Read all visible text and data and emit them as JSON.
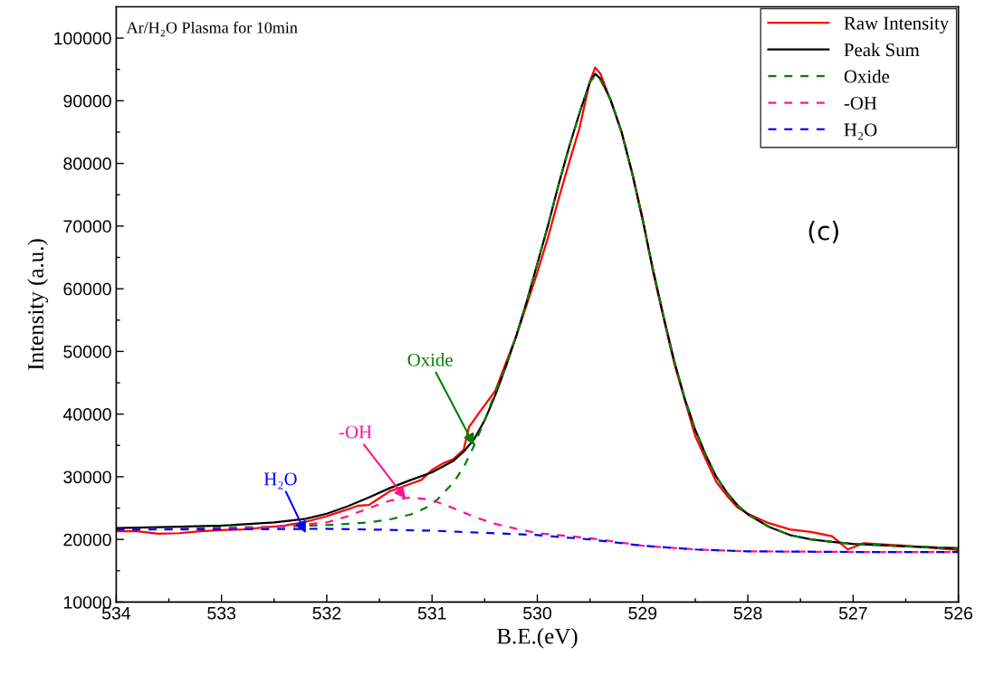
{
  "chart_data": {
    "type": "line",
    "xlabel": "B.E.(eV)",
    "ylabel": "Intensity (a.u.)",
    "xlim": [
      534,
      526
    ],
    "ylim": [
      10000,
      105000
    ],
    "xticks": [
      534,
      {
        "value": 533.5,
        "label": null
      },
      533,
      {
        "value": 532.5,
        "label": null
      },
      532,
      {
        "value": 531.5,
        "label": null
      },
      531,
      {
        "value": 530.5,
        "label": null
      },
      530,
      {
        "value": 529.5,
        "label": null
      },
      529,
      {
        "value": 528.5,
        "label": null
      },
      528,
      {
        "value": 527.5,
        "label": null
      },
      527,
      {
        "value": 526.5,
        "label": null
      },
      526
    ],
    "yticks": [
      10000,
      {
        "value": 15000,
        "label": null
      },
      20000,
      {
        "value": 25000,
        "label": null
      },
      30000,
      {
        "value": 35000,
        "label": null
      },
      40000,
      {
        "value": 45000,
        "label": null
      },
      50000,
      {
        "value": 55000,
        "label": null
      },
      60000,
      {
        "value": 65000,
        "label": null
      },
      70000,
      {
        "value": 75000,
        "label": null
      },
      80000,
      {
        "value": 85000,
        "label": null
      },
      90000,
      {
        "value": 95000,
        "label": null
      },
      100000
    ],
    "grid": false,
    "legend": "top right",
    "marker": "none",
    "series": [
      {
        "name": "Raw Intensity",
        "color": "#ff0000",
        "line_style": "solid",
        "x": [
          534,
          533.8,
          533.6,
          533.4,
          533.2,
          533,
          532.8,
          532.6,
          532.4,
          532.2,
          532,
          531.8,
          531.7,
          531.6,
          531.5,
          531.4,
          531.3,
          531.2,
          531.1,
          531,
          530.9,
          530.8,
          530.7,
          530.65,
          530.54,
          530.4,
          530.3,
          530.2,
          530.1,
          530,
          529.9,
          529.8,
          529.7,
          529.6,
          529.5,
          529.45,
          529.4,
          529.3,
          529.2,
          529.1,
          529,
          528.9,
          528.8,
          528.7,
          528.6,
          528.5,
          528.4,
          528.3,
          528.2,
          528.1,
          528,
          527.8,
          527.6,
          527.4,
          527.2,
          527.05,
          526.9,
          526.5,
          526
        ],
        "values": [
          21300,
          21300,
          20900,
          21000,
          21300,
          21500,
          21600,
          21900,
          22200,
          22800,
          23700,
          24800,
          25400,
          25500,
          26600,
          27700,
          28300,
          28900,
          29500,
          31100,
          32100,
          32800,
          34300,
          37900,
          40500,
          43700,
          48100,
          52400,
          57500,
          62600,
          68100,
          74200,
          80000,
          85600,
          93100,
          95300,
          94300,
          89900,
          85100,
          78600,
          71300,
          62600,
          55300,
          48100,
          42300,
          36500,
          32800,
          29200,
          27000,
          25100,
          24100,
          22600,
          21600,
          21200,
          20500,
          18400,
          19400,
          19000,
          18300
        ]
      },
      {
        "name": "Peak Sum",
        "color": "#000000",
        "line_style": "solid",
        "x": [
          534,
          533.5,
          533,
          532.5,
          532.2,
          532,
          531.8,
          531.6,
          531.4,
          531.2,
          531,
          530.8,
          530.7,
          530.6,
          530.5,
          530.4,
          530.3,
          530.2,
          530.1,
          530,
          529.9,
          529.8,
          529.7,
          529.6,
          529.5,
          529.45,
          529.4,
          529.3,
          529.2,
          529.1,
          529,
          528.9,
          528.8,
          528.7,
          528.6,
          528.5,
          528.4,
          528.3,
          528.2,
          528.1,
          528,
          527.8,
          527.6,
          527.4,
          527.2,
          527,
          526.5,
          526
        ],
        "values": [
          21800,
          22000,
          22200,
          22700,
          23300,
          24100,
          25300,
          26700,
          28200,
          29500,
          30700,
          32500,
          34000,
          36000,
          39000,
          43000,
          47500,
          52500,
          58000,
          64000,
          70000,
          76500,
          82500,
          88000,
          93000,
          94300,
          93500,
          90000,
          85000,
          78500,
          71000,
          63000,
          55500,
          48500,
          42500,
          37500,
          33500,
          30000,
          27500,
          25500,
          24000,
          22000,
          20700,
          20000,
          19600,
          19300,
          18900,
          18600
        ]
      },
      {
        "name": "Oxide",
        "color": "#008000",
        "line_style": "dashed",
        "x": [
          534,
          533,
          532.5,
          532,
          531.6,
          531.4,
          531.2,
          531,
          530.8,
          530.7,
          530.6,
          530.5,
          530.4,
          530.3,
          530.2,
          530.1,
          530,
          529.9,
          529.8,
          529.7,
          529.6,
          529.5,
          529.45,
          529.4,
          529.3,
          529.2,
          529.1,
          529,
          528.9,
          528.8,
          528.7,
          528.6,
          528.5,
          528.4,
          528.3,
          528.2,
          528.1,
          528,
          527.8,
          527.6,
          527.4,
          527.2,
          527,
          526.5,
          526
        ],
        "values": [
          21600,
          21900,
          22000,
          22300,
          22700,
          23200,
          24000,
          25500,
          29000,
          31500,
          35000,
          39000,
          43500,
          47500,
          52500,
          58000,
          64000,
          70000,
          76500,
          82500,
          88000,
          93000,
          94000,
          93300,
          90000,
          85000,
          78500,
          71000,
          63000,
          55500,
          48500,
          42500,
          37500,
          33500,
          30000,
          27500,
          25500,
          24000,
          22000,
          20700,
          20000,
          19600,
          19300,
          18900,
          18600
        ]
      },
      {
        "name": "-OH",
        "color": "#ff1493",
        "line_style": "dashed",
        "x": [
          534,
          533,
          532.5,
          532,
          531.8,
          531.6,
          531.4,
          531.2,
          531,
          530.8,
          530.6,
          530.4,
          530.2,
          530,
          529.8,
          529.5,
          529,
          528.5,
          528,
          527,
          526
        ],
        "values": [
          21600,
          21700,
          22000,
          22700,
          23700,
          25000,
          26200,
          26700,
          26300,
          25000,
          23600,
          22500,
          21700,
          21000,
          20700,
          20200,
          19000,
          18400,
          18100,
          18000,
          18000
        ]
      },
      {
        "name": "H₂O",
        "color": "#0000ff",
        "line_style": "dashed",
        "x": [
          534,
          533,
          532,
          531,
          530,
          529.5,
          529,
          528.5,
          528,
          527,
          526
        ],
        "values": [
          21600,
          21600,
          21700,
          21400,
          20700,
          20000,
          19000,
          18400,
          18100,
          18000,
          18000
        ]
      }
    ],
    "annotations": [
      "Ar/H₂O Plasma for 10min",
      "(c)",
      {
        "text": "Oxide",
        "x": 530.6,
        "y": 35000
      },
      {
        "text": "-OH",
        "x": 531.25,
        "y": 26500
      },
      {
        "text": "H₂O",
        "x": 532.2,
        "y": 21000
      }
    ]
  }
}
